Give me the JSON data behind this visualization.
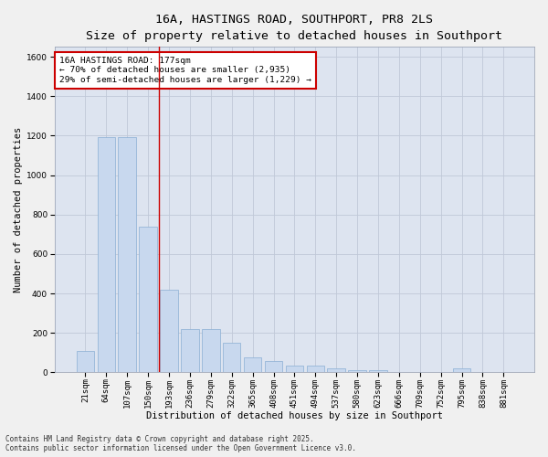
{
  "title_line1": "16A, HASTINGS ROAD, SOUTHPORT, PR8 2LS",
  "title_line2": "Size of property relative to detached houses in Southport",
  "xlabel": "Distribution of detached houses by size in Southport",
  "ylabel": "Number of detached properties",
  "categories": [
    "21sqm",
    "64sqm",
    "107sqm",
    "150sqm",
    "193sqm",
    "236sqm",
    "279sqm",
    "322sqm",
    "365sqm",
    "408sqm",
    "451sqm",
    "494sqm",
    "537sqm",
    "580sqm",
    "623sqm",
    "666sqm",
    "709sqm",
    "752sqm",
    "795sqm",
    "838sqm",
    "881sqm"
  ],
  "values": [
    107,
    1195,
    1195,
    740,
    420,
    220,
    220,
    150,
    75,
    55,
    35,
    35,
    20,
    10,
    10,
    0,
    0,
    0,
    20,
    0,
    0
  ],
  "bar_color": "#c8d8ee",
  "bar_edge_color": "#8aafd4",
  "annotation_text": "16A HASTINGS ROAD: 177sqm\n← 70% of detached houses are smaller (2,935)\n29% of semi-detached houses are larger (1,229) →",
  "annotation_box_color": "#ffffff",
  "annotation_box_edge": "#cc0000",
  "vline_x": 3.5,
  "vline_color": "#cc0000",
  "grid_color": "#c0c8d8",
  "background_color": "#dde4f0",
  "fig_facecolor": "#f0f0f0",
  "ylim": [
    0,
    1650
  ],
  "yticks": [
    0,
    200,
    400,
    600,
    800,
    1000,
    1200,
    1400,
    1600
  ],
  "footnote": "Contains HM Land Registry data © Crown copyright and database right 2025.\nContains public sector information licensed under the Open Government Licence v3.0.",
  "title_fontsize": 9.5,
  "subtitle_fontsize": 8.5,
  "tick_fontsize": 6.5,
  "ylabel_fontsize": 7.5,
  "xlabel_fontsize": 7.5,
  "annot_fontsize": 6.8,
  "footnote_fontsize": 5.5
}
